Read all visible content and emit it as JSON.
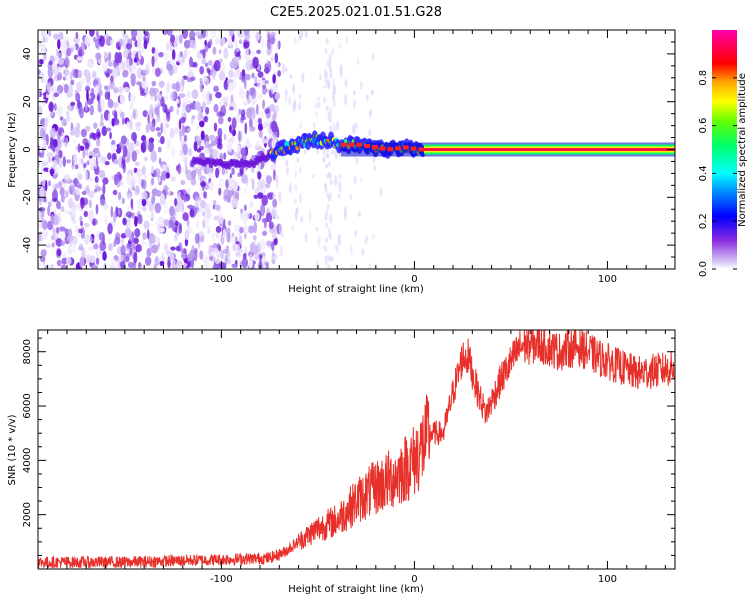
{
  "title": "C2E5.2025.021.01.51.G28",
  "chart_data": [
    {
      "type": "heatmap",
      "xlabel": "Height of straight line (km)",
      "ylabel": "Frequency (Hz)",
      "xlim": [
        -195,
        135
      ],
      "ylim": [
        -50,
        50
      ],
      "xticks": [
        -100,
        0,
        100
      ],
      "yticks": [
        -40,
        -20,
        0,
        20,
        40
      ],
      "colorbar": {
        "label": "Normalized spectral amplitude",
        "range": [
          0,
          1
        ],
        "ticks": [
          "0.0",
          "0.2",
          "0.4",
          "0.6",
          "0.8"
        ],
        "colormap": [
          "#ffffff",
          "#8a2be2",
          "#0000ff",
          "#00ffff",
          "#00ff00",
          "#ffff00",
          "#ff0000",
          "#ff00ff"
        ]
      },
      "features": {
        "noise_region_x": [
          -195,
          -72
        ],
        "main_line_center_hz": [
          [
            -115,
            -5
          ],
          [
            -100,
            -6
          ],
          [
            -85,
            -6
          ],
          [
            -75,
            -3
          ],
          [
            -70,
            0
          ],
          [
            -62,
            2
          ],
          [
            -52,
            4
          ],
          [
            -45,
            4
          ],
          [
            -38,
            2
          ],
          [
            -30,
            2
          ],
          [
            -22,
            1
          ],
          [
            -15,
            0
          ],
          [
            -5,
            1
          ],
          [
            0,
            0
          ],
          [
            50,
            0
          ],
          [
            135,
            0
          ]
        ]
      }
    },
    {
      "type": "line",
      "xlabel": "Height of straight line (km)",
      "ylabel": "SNR (10 * v/v)",
      "xlim": [
        -195,
        135
      ],
      "ylim": [
        0,
        8800
      ],
      "xticks": [
        -100,
        0,
        100
      ],
      "yticks": [
        2000,
        4000,
        6000,
        8000
      ],
      "series": [
        {
          "color": "#e8302a",
          "x": [
            -195,
            -150,
            -100,
            -75,
            -68,
            -60,
            -50,
            -40,
            -30,
            -20,
            -10,
            0,
            8,
            15,
            20,
            25,
            28,
            32,
            37,
            45,
            55,
            65,
            75,
            85,
            95,
            105,
            115,
            125,
            135
          ],
          "y": [
            250,
            250,
            350,
            400,
            600,
            1000,
            1500,
            1800,
            2500,
            3000,
            3400,
            4000,
            5000,
            5000,
            6500,
            7800,
            7800,
            6700,
            5700,
            7000,
            8200,
            8300,
            8000,
            8200,
            7800,
            7500,
            7200,
            7300,
            7400
          ]
        }
      ]
    }
  ]
}
